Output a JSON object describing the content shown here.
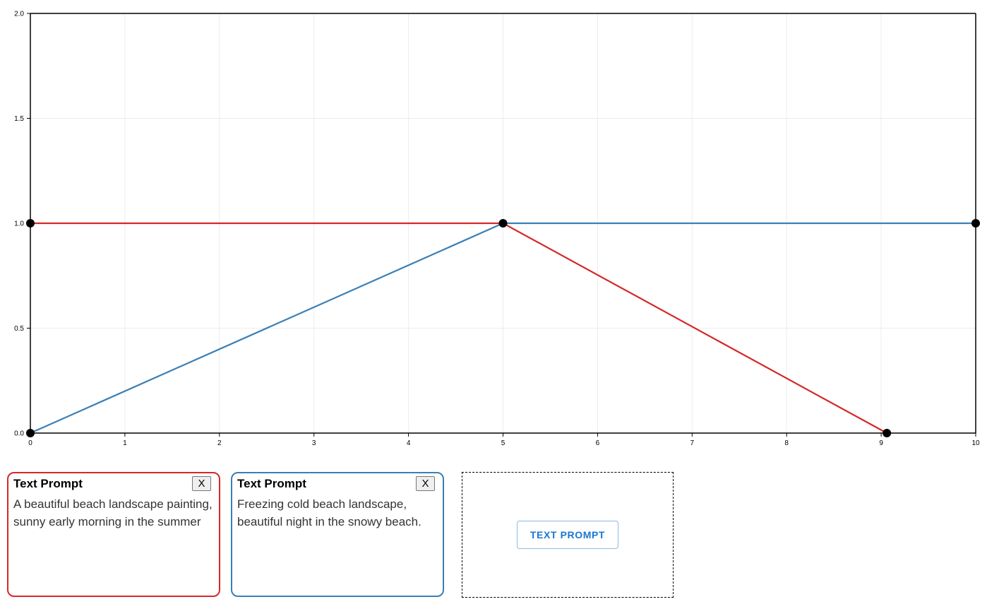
{
  "chart_data": {
    "type": "line",
    "xlim": [
      0,
      10
    ],
    "ylim": [
      0,
      2
    ],
    "x_ticks": [
      "0",
      "1",
      "2",
      "3",
      "4",
      "5",
      "6",
      "7",
      "8",
      "9",
      "10"
    ],
    "y_ticks": [
      "0.0",
      "0.5",
      "1.0",
      "1.5",
      "2.0"
    ],
    "grid": true,
    "series": [
      {
        "color": "#d62728",
        "points": [
          [
            0,
            1.0
          ],
          [
            5,
            1.0
          ],
          [
            9.06,
            0.0
          ]
        ]
      },
      {
        "color": "#3a7fb5",
        "points": [
          [
            0,
            0.0
          ],
          [
            5,
            1.0
          ],
          [
            10,
            1.0
          ]
        ]
      }
    ],
    "point_color": "#000000"
  },
  "prompts": [
    {
      "title": "Text Prompt",
      "close_label": "X",
      "text": "A beautiful beach landscape painting, sunny early morning in the summer",
      "border_color": "#d62728"
    },
    {
      "title": "Text Prompt",
      "close_label": "X",
      "text": "Freezing cold beach landscape, beautiful night in the snowy beach.",
      "border_color": "#3a7fb5"
    }
  ],
  "add_prompt": {
    "label": "TEXT PROMPT"
  }
}
